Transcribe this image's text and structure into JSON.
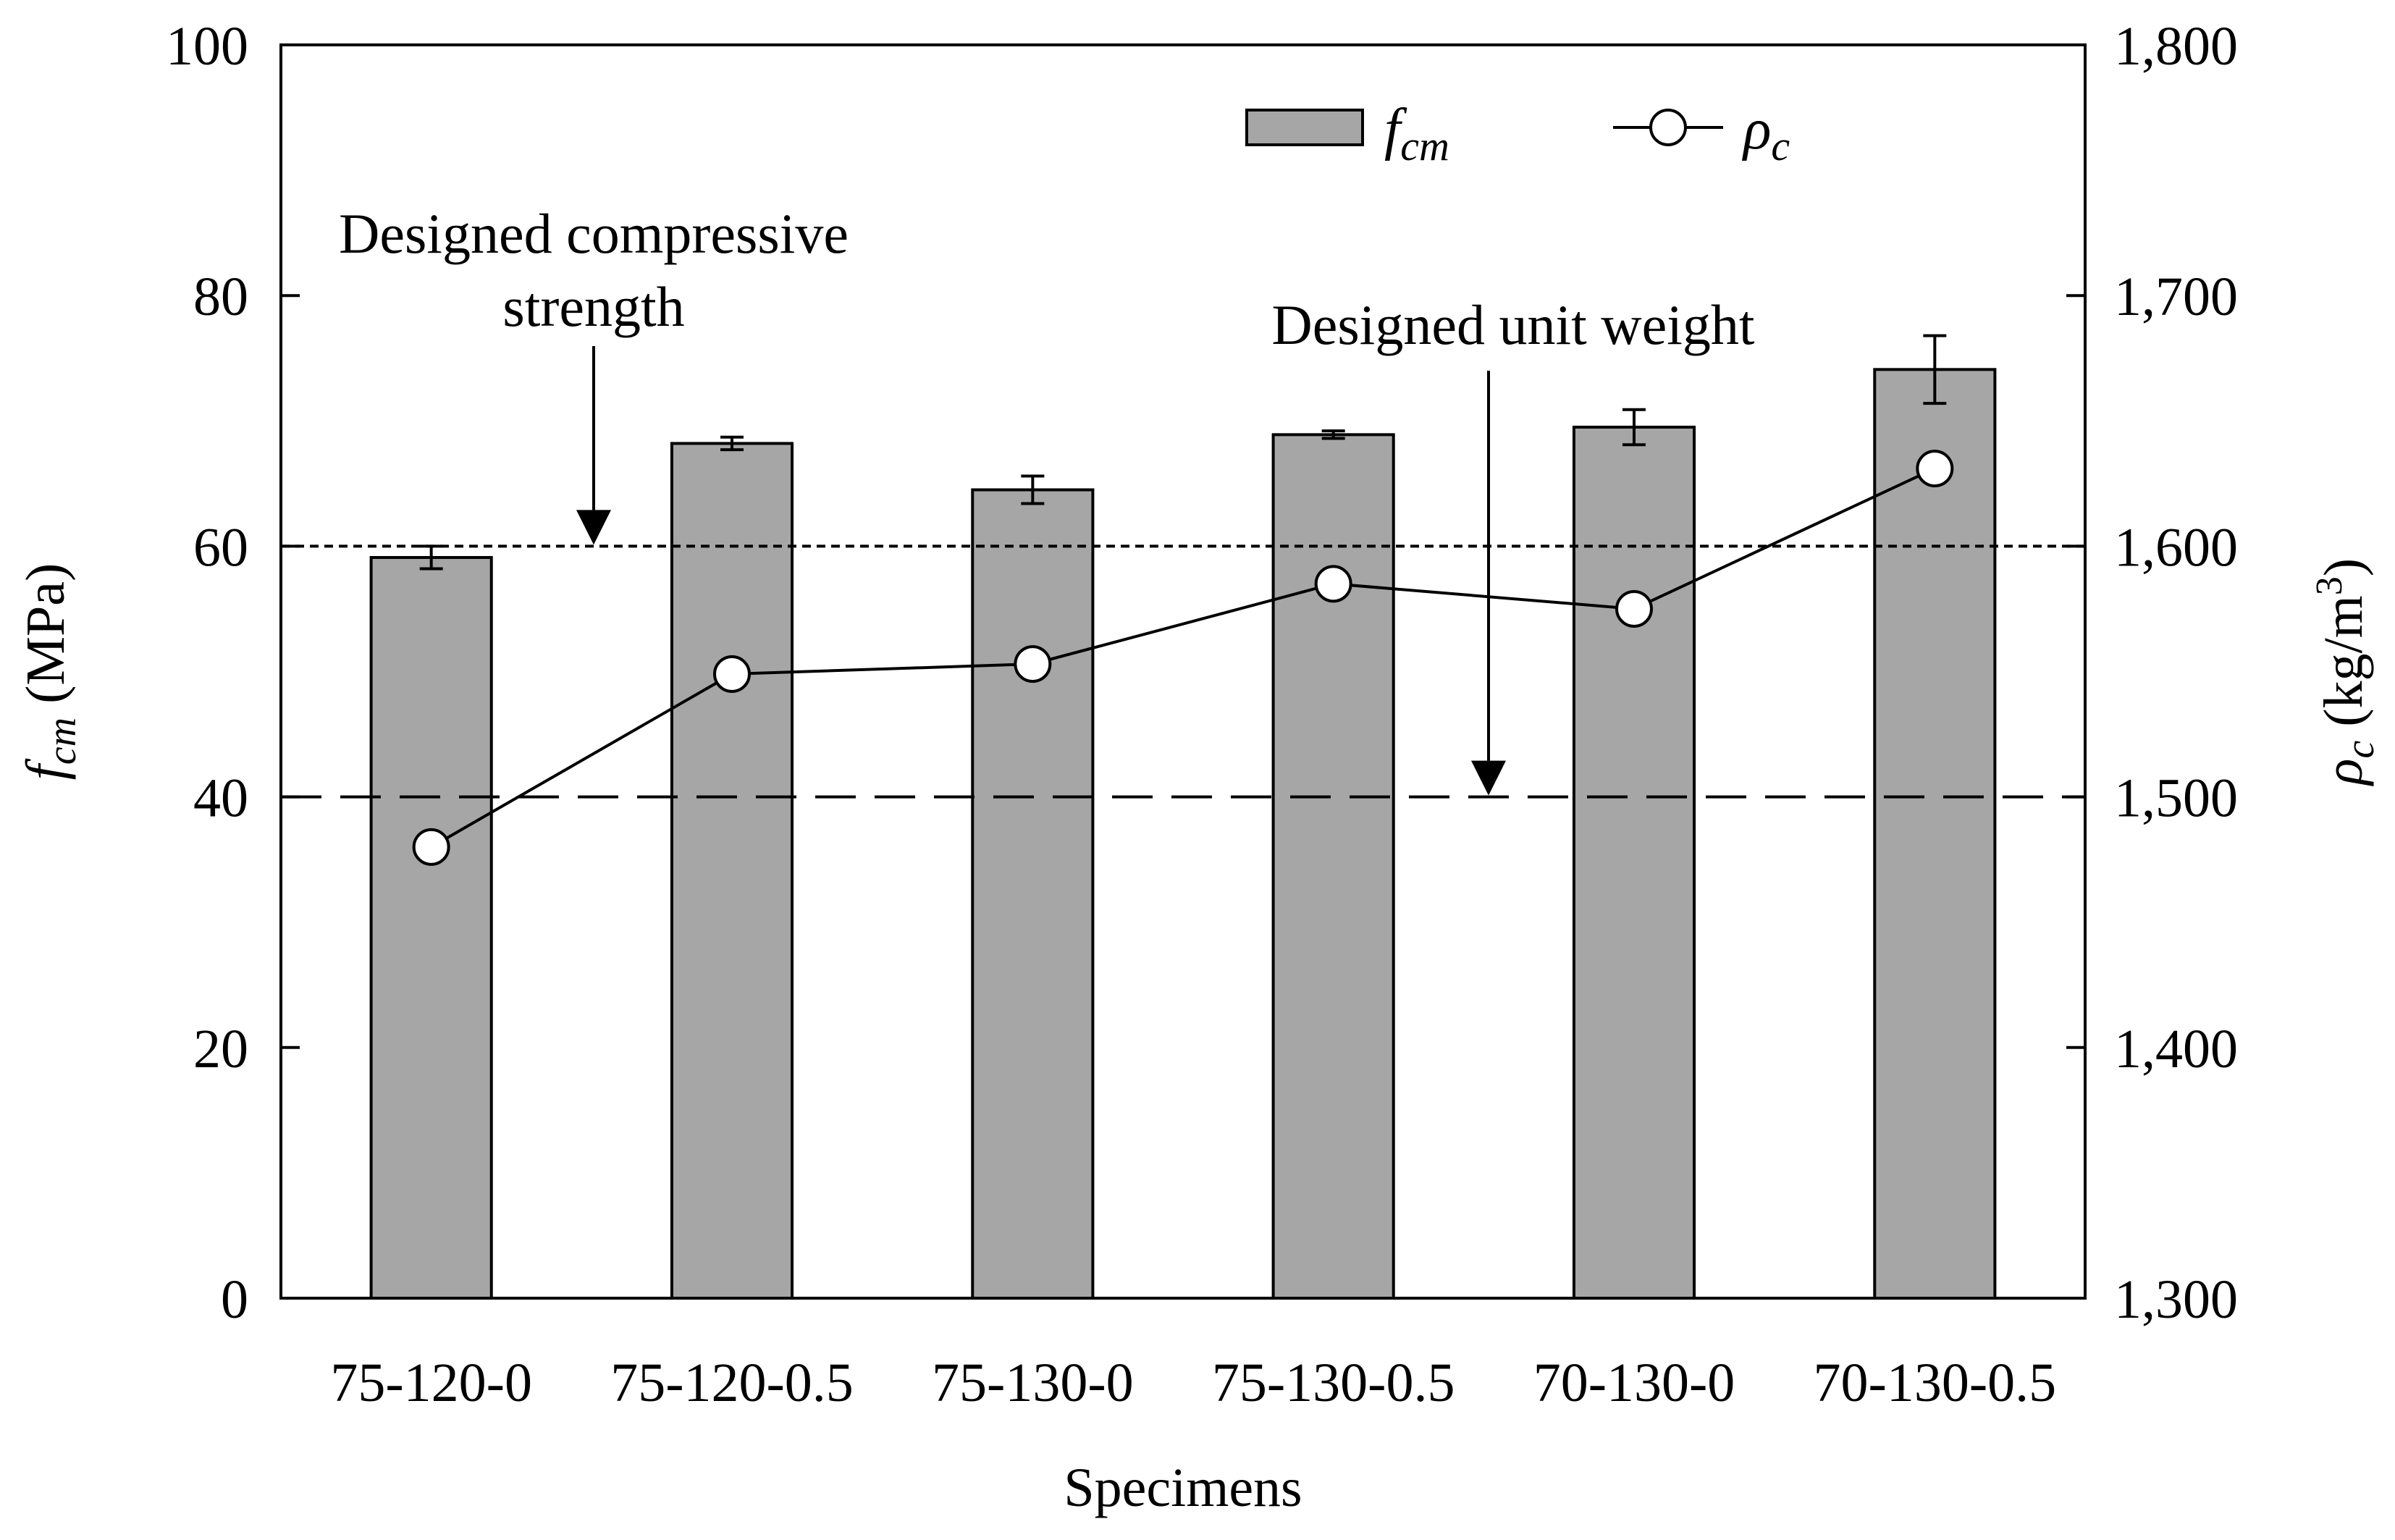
{
  "chart_data": {
    "type": "bar",
    "categories": [
      "75-120-0",
      "75-120-0.5",
      "75-130-0",
      "75-130-0.5",
      "70-130-0",
      "70-130-0.5"
    ],
    "xlabel": "Specimens",
    "ylabel": {
      "symbol": "f",
      "sub": "cm",
      "unit": " (MPa)"
    },
    "ylim": [
      0,
      100
    ],
    "yticks": [
      0,
      20,
      40,
      60,
      80,
      100
    ],
    "y2label": {
      "symbol": "ρ",
      "sub": "c",
      "unit_pre": " (kg/m",
      "unit_sup": "3",
      "unit_post": ")"
    },
    "y2lim": [
      1300,
      1800
    ],
    "y2ticks": [
      1300,
      1400,
      1500,
      1600,
      1700,
      1800
    ],
    "y2tick_labels": [
      "1,300",
      "1,400",
      "1,500",
      "1,600",
      "1,700",
      "1,800"
    ],
    "series": [
      {
        "name": "f_cm",
        "label_main": "f",
        "label_sub": "cm",
        "axis": "left",
        "kind": "bar",
        "values": [
          59.1,
          68.2,
          64.5,
          68.9,
          69.5,
          74.1
        ],
        "errors": [
          0.9,
          0.5,
          1.1,
          0.3,
          1.4,
          2.7
        ],
        "color": "#a6a6a6"
      },
      {
        "name": "ρ_c",
        "label_main": "ρ",
        "label_sub": "c",
        "axis": "right",
        "kind": "line",
        "values": [
          1480,
          1549,
          1553,
          1585,
          1575,
          1631
        ],
        "color": "#000000"
      }
    ],
    "reference_lines": [
      {
        "axis": "left",
        "value": 60,
        "style": "dotted",
        "label": [
          "Designed compressive",
          "strength"
        ]
      },
      {
        "axis": "right",
        "value": 1500,
        "style": "dashed",
        "label": [
          "Designed unit weight"
        ]
      }
    ],
    "legend_position": "top-right",
    "grid": false
  }
}
